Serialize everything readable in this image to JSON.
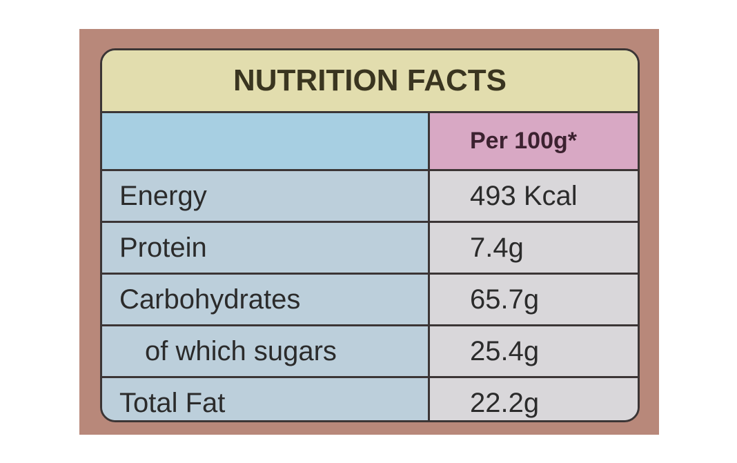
{
  "title": "NUTRITION FACTS",
  "header": {
    "label": "",
    "value": "Per 100g*"
  },
  "table": {
    "rows": [
      [
        "Energy",
        "493 Kcal"
      ],
      [
        "Protein",
        "7.4g"
      ],
      [
        "Carbohydrates",
        "65.7g"
      ],
      [
        "of which sugars",
        "25.4g"
      ],
      [
        "Total Fat",
        "22.2g"
      ]
    ]
  }
}
